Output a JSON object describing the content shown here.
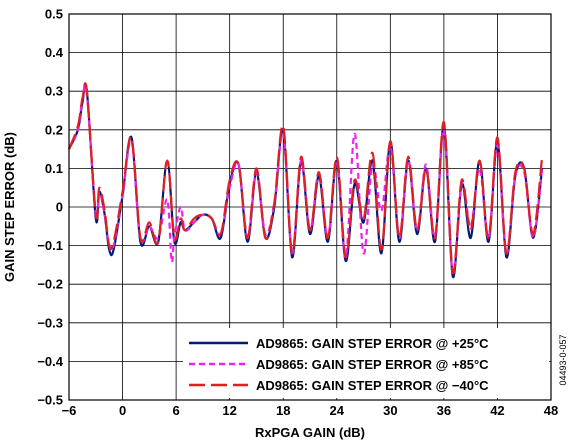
{
  "chart_data": {
    "type": "line",
    "title": "",
    "xlabel": "RxPGA GAIN (dB)",
    "ylabel": "GAIN STEP ERROR (dB)",
    "xlim": [
      -6,
      48
    ],
    "ylim": [
      -0.5,
      0.5
    ],
    "x_ticks": [
      "−6",
      "0",
      "6",
      "12",
      "18",
      "24",
      "30",
      "36",
      "42",
      "48"
    ],
    "x_tick_values": [
      -6,
      0,
      6,
      12,
      18,
      24,
      30,
      36,
      42,
      48
    ],
    "y_ticks": [
      "−0.5",
      "−0.4",
      "−0.3",
      "−0.2",
      "−0.1",
      "0",
      "0.1",
      "0.2",
      "0.3",
      "0.4",
      "0.5"
    ],
    "y_tick_values": [
      -0.5,
      -0.4,
      -0.3,
      -0.2,
      -0.1,
      0,
      0.1,
      0.2,
      0.3,
      0.4,
      0.5
    ],
    "grid": true,
    "legend_position": "bottom-right",
    "figure_id": "04493-0-057",
    "series": [
      {
        "name": "AD9865: GAIN STEP ERROR @ +25°C",
        "color": "#001a7a",
        "dash": "solid",
        "x": [
          -6,
          -5,
          -4.5,
          -4,
          -3,
          -2.6,
          -2,
          -1.5,
          -1,
          0,
          1,
          2,
          3,
          4,
          5,
          5.8,
          6.5,
          7,
          8,
          9,
          10,
          11,
          12,
          13,
          14,
          15,
          16,
          17,
          18,
          19,
          20,
          21,
          22,
          23,
          24,
          25,
          26,
          27,
          28,
          29,
          30,
          31,
          32,
          33,
          34,
          35,
          36,
          37,
          38,
          39,
          40,
          41,
          42,
          43,
          44,
          45,
          46,
          47
        ],
        "y": [
          0.15,
          0.2,
          0.27,
          0.3,
          -0.03,
          0.04,
          -0.02,
          -0.11,
          -0.11,
          0.03,
          0.18,
          -0.09,
          -0.05,
          -0.09,
          0.12,
          -0.09,
          -0.04,
          -0.06,
          -0.04,
          -0.02,
          -0.03,
          -0.08,
          0.06,
          0.11,
          -0.09,
          0.09,
          -0.08,
          0.0,
          0.2,
          -0.13,
          0.12,
          -0.07,
          0.08,
          -0.09,
          0.12,
          -0.14,
          0.06,
          -0.04,
          0.12,
          -0.12,
          0.17,
          -0.09,
          0.12,
          -0.07,
          0.1,
          -0.09,
          0.21,
          -0.18,
          0.06,
          -0.08,
          0.12,
          -0.09,
          0.17,
          -0.13,
          0.08,
          0.1,
          -0.08,
          0.1
        ]
      },
      {
        "name": "AD9865: GAIN STEP ERROR @ +85°C",
        "color": "#ee22ee",
        "dash": "short",
        "x": [
          -6,
          -5,
          -4.5,
          -4,
          -3,
          -2.6,
          -2,
          -1.5,
          -1,
          0,
          1,
          2,
          3,
          4,
          5,
          5.5,
          5.8,
          6.5,
          7,
          8,
          9,
          10,
          11,
          12,
          13,
          14,
          15,
          16,
          17,
          18,
          19,
          20,
          21,
          22,
          23,
          24,
          25,
          26,
          27,
          28,
          29,
          30,
          31,
          32,
          33,
          34,
          35,
          36,
          37,
          38,
          39,
          40,
          41,
          42,
          43,
          44,
          45,
          46,
          47
        ],
        "y": [
          0.15,
          0.2,
          0.28,
          0.29,
          -0.02,
          0.04,
          -0.02,
          -0.1,
          -0.1,
          0.03,
          0.17,
          -0.08,
          -0.05,
          -0.08,
          0.02,
          -0.14,
          -0.08,
          0.0,
          -0.06,
          -0.04,
          -0.02,
          -0.03,
          -0.07,
          0.05,
          0.11,
          -0.08,
          0.09,
          -0.07,
          0.01,
          0.19,
          -0.12,
          0.12,
          -0.06,
          0.09,
          -0.08,
          0.12,
          -0.13,
          0.19,
          -0.12,
          0.11,
          -0.01,
          0.16,
          -0.08,
          0.12,
          -0.06,
          0.11,
          -0.08,
          0.2,
          -0.17,
          0.06,
          -0.05,
          0.1,
          -0.08,
          0.16,
          -0.12,
          0.08,
          0.09,
          -0.08,
          0.1
        ]
      },
      {
        "name": "AD9865: GAIN STEP ERROR @ −40°C",
        "color": "#e02020",
        "dash": "long",
        "x": [
          -6,
          -5,
          -4.5,
          -4,
          -3,
          -2.6,
          -2,
          -1.5,
          -1,
          0,
          1,
          2,
          3,
          4,
          5,
          5.8,
          6.5,
          7,
          8,
          9,
          10,
          11,
          12,
          13,
          14,
          15,
          16,
          17,
          18,
          19,
          20,
          21,
          22,
          23,
          24,
          25,
          26,
          27,
          28,
          29,
          30,
          31,
          32,
          33,
          34,
          35,
          36,
          37,
          38,
          39,
          40,
          41,
          42,
          43,
          44,
          45,
          46,
          47
        ],
        "y": [
          0.15,
          0.21,
          0.28,
          0.3,
          -0.02,
          0.05,
          -0.01,
          -0.1,
          -0.09,
          0.04,
          0.18,
          -0.08,
          -0.04,
          -0.09,
          0.12,
          -0.08,
          -0.03,
          -0.06,
          -0.03,
          -0.02,
          -0.03,
          -0.07,
          0.07,
          0.11,
          -0.08,
          0.1,
          -0.08,
          0.01,
          0.21,
          -0.12,
          0.13,
          -0.06,
          0.09,
          -0.08,
          0.13,
          -0.13,
          0.07,
          -0.03,
          0.14,
          -0.11,
          0.17,
          -0.08,
          0.13,
          -0.06,
          0.1,
          -0.08,
          0.22,
          -0.17,
          0.07,
          -0.06,
          0.12,
          -0.08,
          0.18,
          -0.12,
          0.09,
          0.1,
          -0.07,
          0.13
        ]
      }
    ]
  }
}
